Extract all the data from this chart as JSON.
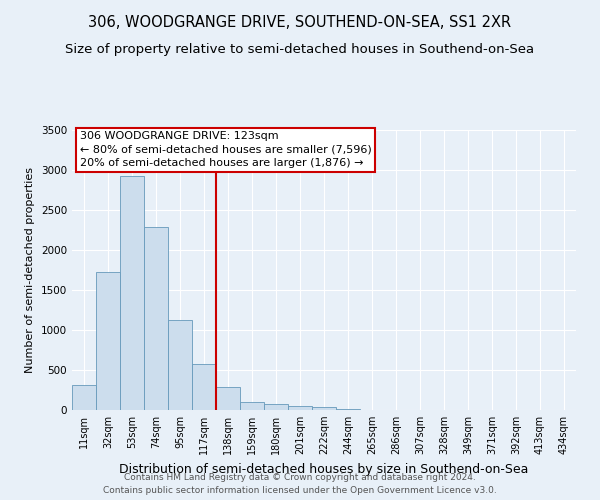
{
  "title": "306, WOODGRANGE DRIVE, SOUTHEND-ON-SEA, SS1 2XR",
  "subtitle": "Size of property relative to semi-detached houses in Southend-on-Sea",
  "xlabel": "Distribution of semi-detached houses by size in Southend-on-Sea",
  "ylabel": "Number of semi-detached properties",
  "footer_line1": "Contains HM Land Registry data © Crown copyright and database right 2024.",
  "footer_line2": "Contains public sector information licensed under the Open Government Licence v3.0.",
  "bar_labels": [
    "11sqm",
    "32sqm",
    "53sqm",
    "74sqm",
    "95sqm",
    "117sqm",
    "138sqm",
    "159sqm",
    "180sqm",
    "201sqm",
    "222sqm",
    "244sqm",
    "265sqm",
    "286sqm",
    "307sqm",
    "328sqm",
    "349sqm",
    "371sqm",
    "392sqm",
    "413sqm",
    "434sqm"
  ],
  "bar_values": [
    310,
    1730,
    2920,
    2290,
    1130,
    580,
    290,
    100,
    80,
    55,
    35,
    10,
    5,
    2,
    1,
    0,
    0,
    0,
    0,
    0,
    0
  ],
  "bar_color": "#ccdded",
  "bar_edge_color": "#6699bb",
  "vline_x_index": 5.5,
  "vline_color": "#cc0000",
  "annotation_box_color": "#cc0000",
  "ann_line1": "306 WOODGRANGE DRIVE: 123sqm",
  "ann_line2": "← 80% of semi-detached houses are smaller (7,596)",
  "ann_line3": "20% of semi-detached houses are larger (1,876) →",
  "ylim": [
    0,
    3500
  ],
  "yticks": [
    0,
    500,
    1000,
    1500,
    2000,
    2500,
    3000,
    3500
  ],
  "background_color": "#e8f0f8",
  "axes_bg_color": "#e8f0f8",
  "grid_color": "#ffffff",
  "title_fontsize": 10.5,
  "subtitle_fontsize": 9.5,
  "xlabel_fontsize": 9,
  "ylabel_fontsize": 8,
  "tick_fontsize": 7,
  "ann_fontsize": 8,
  "footer_fontsize": 6.5,
  "footer_color": "#555555"
}
